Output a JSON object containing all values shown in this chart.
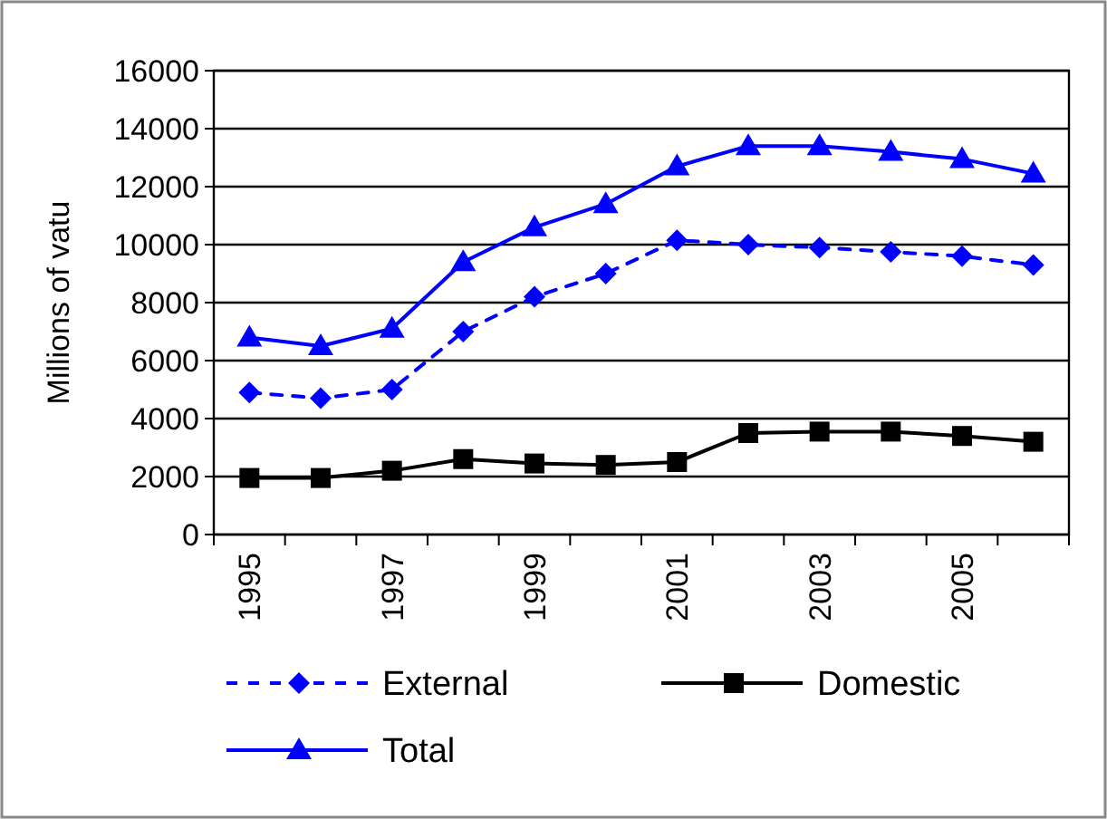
{
  "chart_data": {
    "type": "line",
    "ylabel": "Millions of vatu",
    "categories": [
      "1995",
      null,
      "1997",
      null,
      "1999",
      null,
      "2001",
      null,
      "2003",
      null,
      "2005",
      null
    ],
    "series": [
      {
        "name": "External",
        "color": "#0000ff",
        "marker": "diamond",
        "line_style": "dashed",
        "values": [
          4900,
          4700,
          5000,
          7000,
          8200,
          9000,
          10150,
          10000,
          9900,
          9750,
          9600,
          9300
        ]
      },
      {
        "name": "Domestic",
        "color": "#000000",
        "marker": "square",
        "line_style": "solid",
        "values": [
          1950,
          1950,
          2200,
          2600,
          2450,
          2400,
          2500,
          3500,
          3550,
          3550,
          3400,
          3200
        ]
      },
      {
        "name": "Total",
        "color": "#0000ff",
        "marker": "triangle",
        "line_style": "solid",
        "values": [
          6800,
          6500,
          7100,
          9400,
          10600,
          11400,
          12700,
          13400,
          13400,
          13200,
          12950,
          12450
        ]
      }
    ],
    "ylim": [
      0,
      16000
    ],
    "yticks": [
      0,
      2000,
      4000,
      6000,
      8000,
      10000,
      12000,
      14000,
      16000
    ],
    "grid": "y",
    "legend": "bottom"
  }
}
